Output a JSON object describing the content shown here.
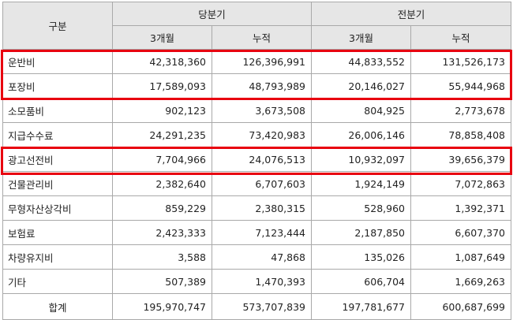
{
  "header": {
    "category": "구분",
    "current_period": "당분기",
    "prior_period": "전분기",
    "three_month": "3개월",
    "cumulative": "누적"
  },
  "rows": [
    {
      "label": "운반비",
      "cur_3m": "42,318,360",
      "cur_cum": "126,396,991",
      "prev_3m": "44,833,552",
      "prev_cum": "131,526,173"
    },
    {
      "label": "포장비",
      "cur_3m": "17,589,093",
      "cur_cum": "48,793,989",
      "prev_3m": "20,146,027",
      "prev_cum": "55,944,968"
    },
    {
      "label": "소모품비",
      "cur_3m": "902,123",
      "cur_cum": "3,673,508",
      "prev_3m": "804,925",
      "prev_cum": "2,773,678"
    },
    {
      "label": "지급수수료",
      "cur_3m": "24,291,235",
      "cur_cum": "73,420,983",
      "prev_3m": "26,006,146",
      "prev_cum": "78,858,408"
    },
    {
      "label": "광고선전비",
      "cur_3m": "7,704,966",
      "cur_cum": "24,076,513",
      "prev_3m": "10,932,097",
      "prev_cum": "39,656,379"
    },
    {
      "label": "건물관리비",
      "cur_3m": "2,382,640",
      "cur_cum": "6,707,603",
      "prev_3m": "1,924,149",
      "prev_cum": "7,072,863"
    },
    {
      "label": "무형자산상각비",
      "cur_3m": "859,229",
      "cur_cum": "2,380,315",
      "prev_3m": "528,960",
      "prev_cum": "1,392,371"
    },
    {
      "label": "보험료",
      "cur_3m": "2,423,333",
      "cur_cum": "7,123,444",
      "prev_3m": "2,187,850",
      "prev_cum": "6,607,370"
    },
    {
      "label": "차량유지비",
      "cur_3m": "3,588",
      "cur_cum": "47,868",
      "prev_3m": "135,026",
      "prev_cum": "1,087,649"
    },
    {
      "label": "기타",
      "cur_3m": "507,389",
      "cur_cum": "1,470,393",
      "prev_3m": "606,704",
      "prev_cum": "1,669,263"
    }
  ],
  "total": {
    "label": "합계",
    "cur_3m": "195,970,747",
    "cur_cum": "573,707,839",
    "prev_3m": "197,781,677",
    "prev_cum": "600,687,699"
  },
  "highlight_color": "#e8000f"
}
